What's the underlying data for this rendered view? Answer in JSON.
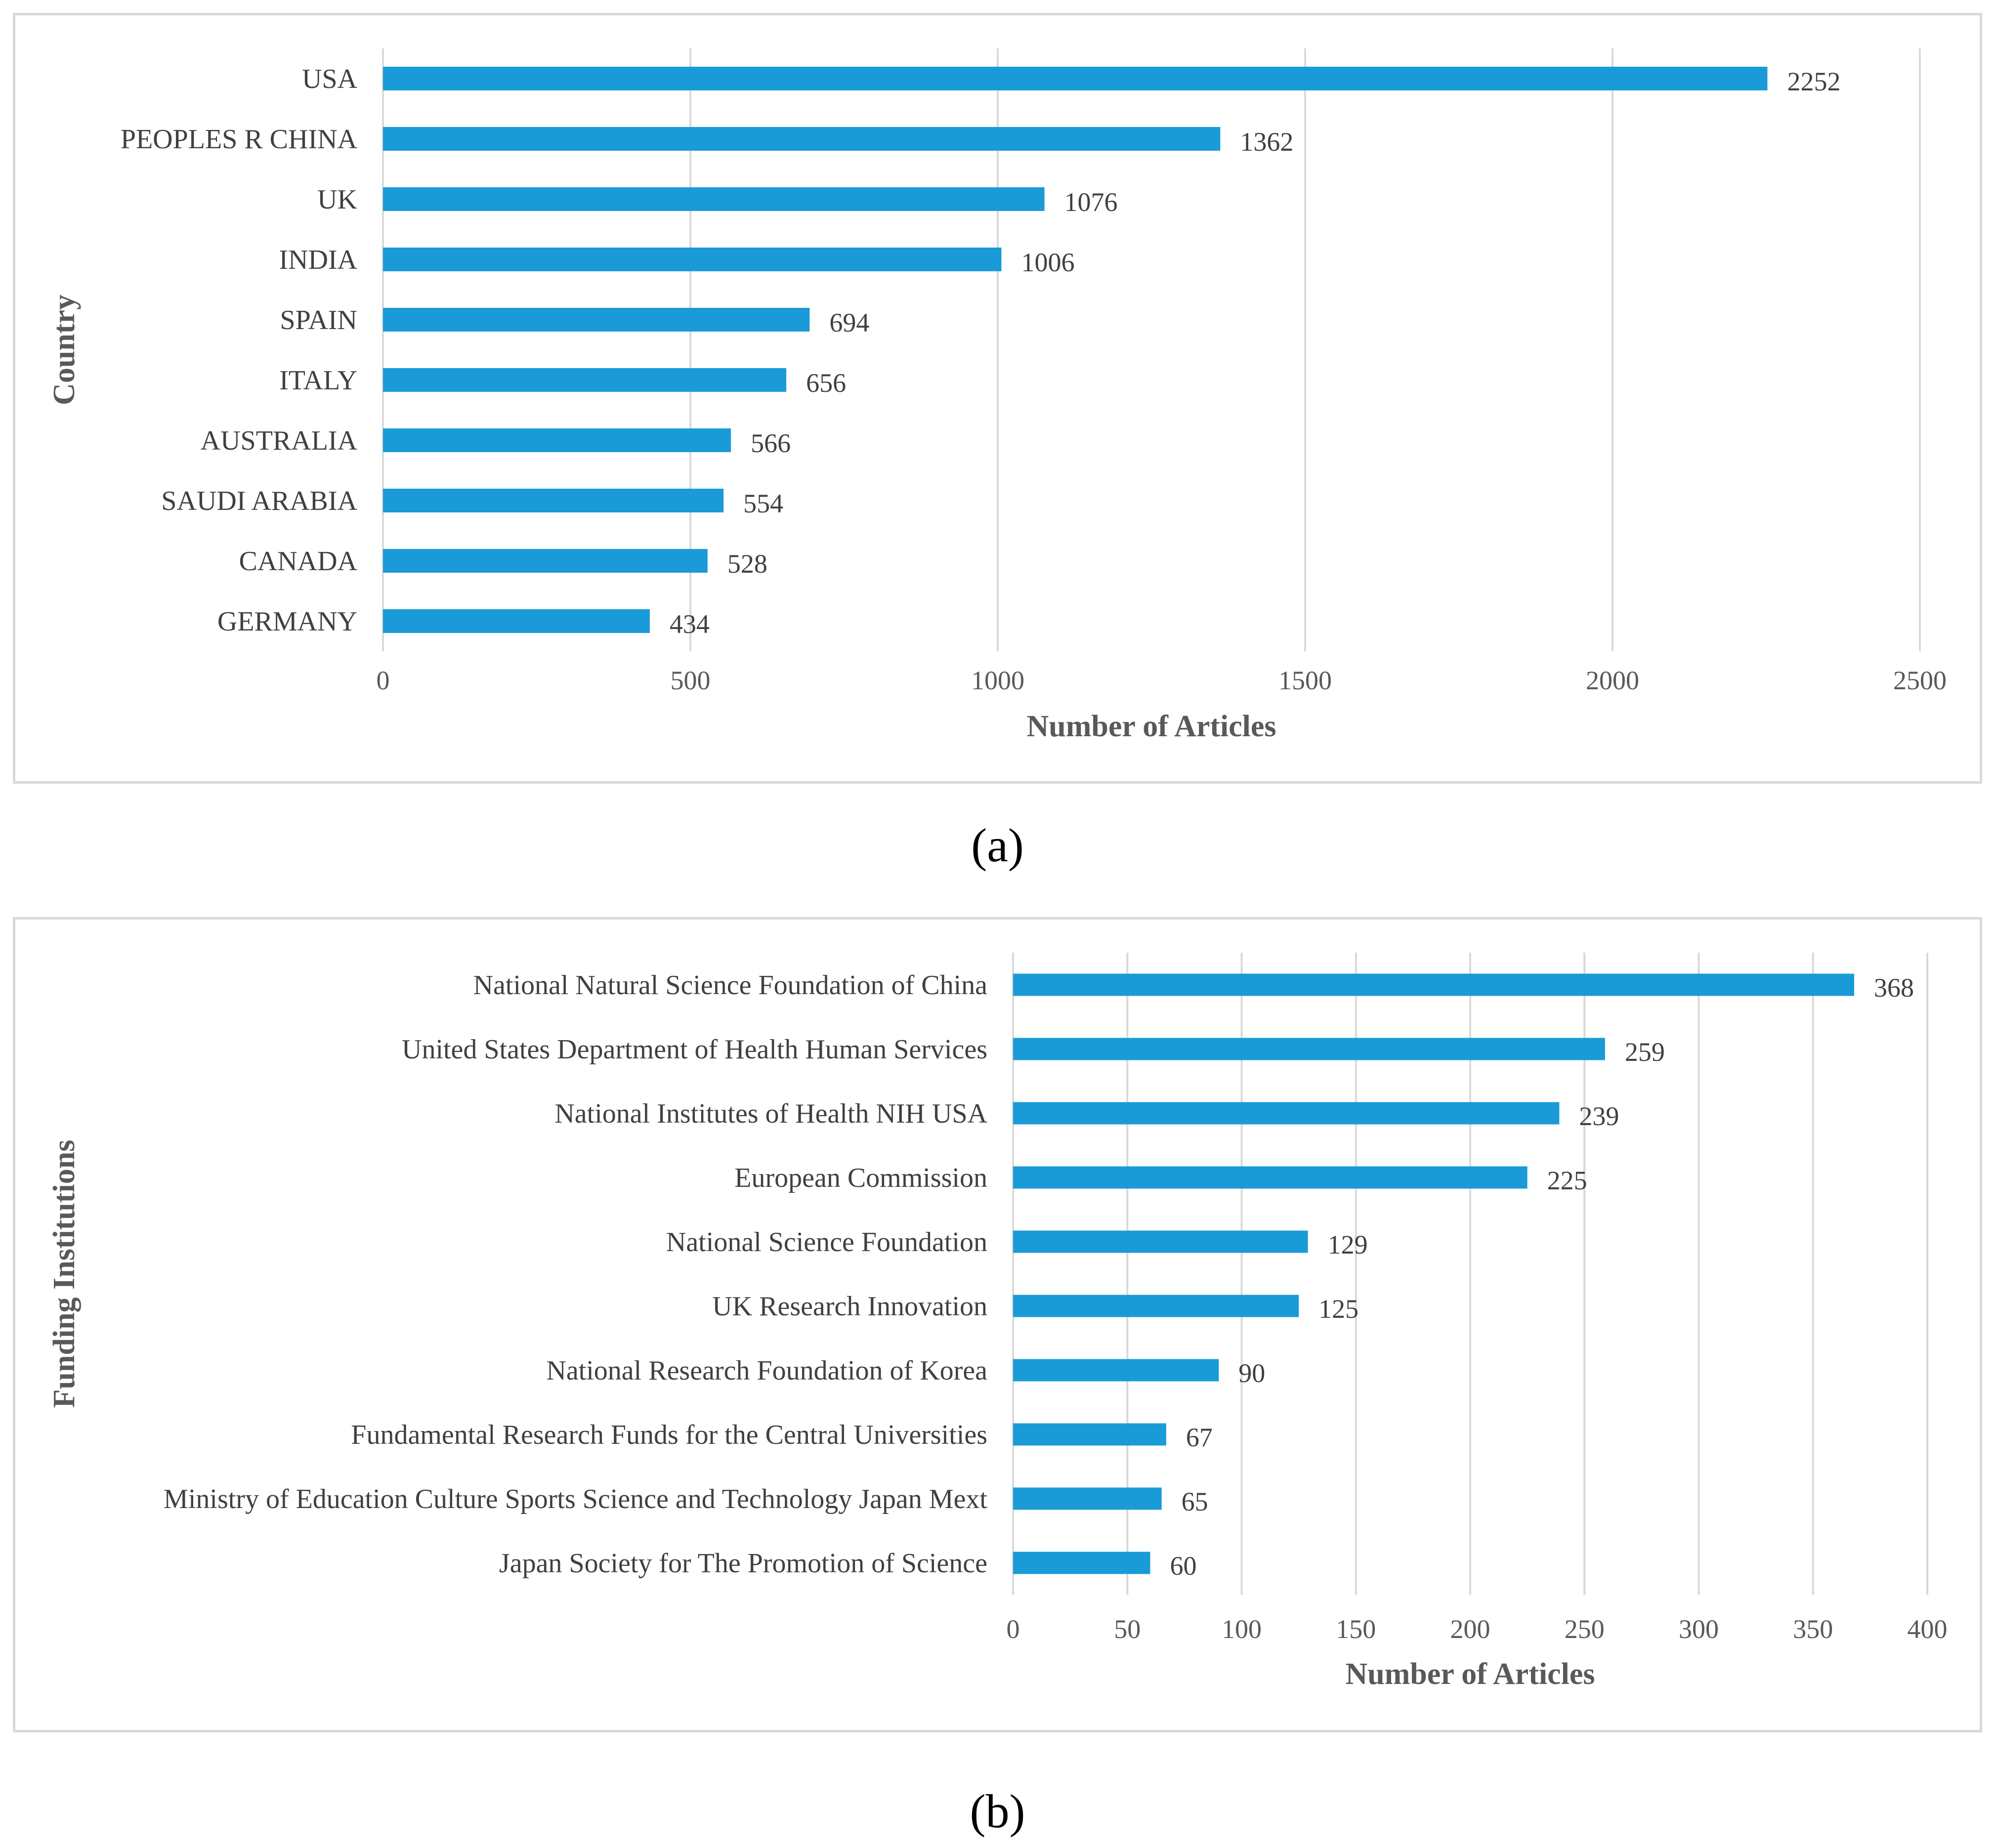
{
  "chart_data": [
    {
      "type": "bar",
      "orientation": "horizontal",
      "caption": "(a)",
      "title": "",
      "xlabel": "Number of Articles",
      "ylabel": "Country",
      "xlim": [
        0,
        2500
      ],
      "xticks": [
        0,
        500,
        1000,
        1500,
        2000,
        2500
      ],
      "grid": "vertical",
      "legend": "none",
      "bar_color": "#1a9bd7",
      "categories": [
        "USA",
        "PEOPLES R CHINA",
        "UK",
        "INDIA",
        "SPAIN",
        "ITALY",
        "AUSTRALIA",
        "SAUDI ARABIA",
        "CANADA",
        "GERMANY"
      ],
      "values": [
        2252,
        1362,
        1076,
        1006,
        694,
        656,
        566,
        554,
        528,
        434
      ]
    },
    {
      "type": "bar",
      "orientation": "horizontal",
      "caption": "(b)",
      "title": "",
      "xlabel": "Number of Articles",
      "ylabel": "Funding Institutions",
      "xlim": [
        0,
        400
      ],
      "xticks": [
        0,
        50,
        100,
        150,
        200,
        250,
        300,
        350,
        400
      ],
      "grid": "vertical",
      "legend": "none",
      "bar_color": "#1a9bd7",
      "categories": [
        "National Natural Science Foundation of China",
        "United States Department of Health Human Services",
        "National Institutes of Health NIH USA",
        "European Commission",
        "National Science Foundation",
        "UK Research Innovation",
        "National Research Foundation of Korea",
        "Fundamental Research Funds for the Central Universities",
        "Ministry of Education Culture Sports Science and Technology Japan Mext",
        "Japan Society for The Promotion of Science"
      ],
      "values": [
        368,
        259,
        239,
        225,
        129,
        125,
        90,
        67,
        65,
        60
      ]
    }
  ]
}
